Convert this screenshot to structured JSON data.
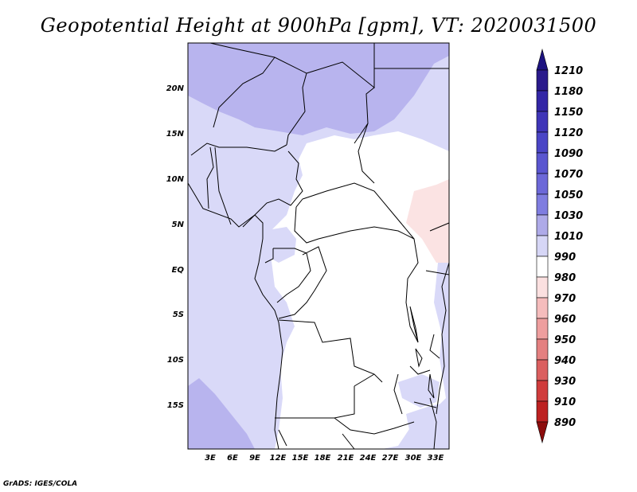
{
  "title": "Geopotential Height at 900hPa [gpm], VT: 2020031500",
  "footer": "GrADS: IGES/COLA",
  "map": {
    "lon_ticks": [
      "3E",
      "6E",
      "9E",
      "12E",
      "15E",
      "18E",
      "21E",
      "24E",
      "27E",
      "30E",
      "33E"
    ],
    "lat_ticks": [
      "20N",
      "15N",
      "10N",
      "5N",
      "EQ",
      "5S",
      "10S",
      "15S"
    ]
  },
  "colorbar": {
    "levels": [
      "1210",
      "1180",
      "1150",
      "1120",
      "1090",
      "1070",
      "1050",
      "1030",
      "1010",
      "990",
      "980",
      "970",
      "960",
      "950",
      "940",
      "930",
      "910",
      "890"
    ],
    "colors": [
      "#2a1a8c",
      "#3326a6",
      "#3f35b8",
      "#4a45c6",
      "#5a56d0",
      "#6c68d8",
      "#7f7de0",
      "#aeaae8",
      "#d6d6f6",
      "#ffffff",
      "#fbe0e0",
      "#f5bcbc",
      "#ee9e9e",
      "#e48080",
      "#db5f5f",
      "#d03c3c",
      "#bd2121",
      "#a31010"
    ],
    "top_color": "#1d1380",
    "bottom_color": "#8c0c0c"
  },
  "palette": {
    "ocean": "#d7d7f5",
    "light_blue": "#d9d9f8",
    "mid_blue": "#b8b4ee",
    "low_pink": "#fbe3e3",
    "land": "#ffffff"
  }
}
